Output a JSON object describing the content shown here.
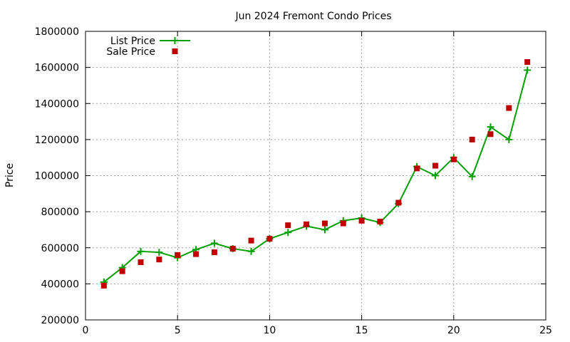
{
  "chart_data": {
    "type": "line",
    "title": "Jun 2024 Fremont Condo Prices",
    "xlabel": "",
    "ylabel": "Price",
    "xlim": [
      0,
      25
    ],
    "ylim": [
      200000,
      1800000
    ],
    "x_ticks": [
      0,
      5,
      10,
      15,
      20,
      25
    ],
    "y_ticks": [
      200000,
      400000,
      600000,
      800000,
      1000000,
      1200000,
      1400000,
      1600000,
      1800000
    ],
    "grid": true,
    "legend_position": "top-left",
    "series": [
      {
        "name": "List Price",
        "style": "linespoints",
        "marker": "plus",
        "color": "#00a000",
        "x": [
          1,
          2,
          3,
          4,
          5,
          6,
          7,
          8,
          9,
          10,
          11,
          12,
          13,
          14,
          15,
          16,
          17,
          18,
          19,
          20,
          21,
          22,
          23,
          24
        ],
        "y": [
          410000,
          490000,
          580000,
          575000,
          545000,
          590000,
          625000,
          595000,
          580000,
          650000,
          685000,
          720000,
          700000,
          750000,
          765000,
          740000,
          845000,
          1050000,
          1000000,
          1100000,
          995000,
          1270000,
          1200000,
          1585000
        ]
      },
      {
        "name": "Sale Price",
        "style": "points",
        "marker": "square",
        "color": "#c00000",
        "x": [
          1,
          2,
          3,
          4,
          5,
          6,
          7,
          8,
          9,
          10,
          11,
          12,
          13,
          14,
          15,
          16,
          17,
          18,
          19,
          20,
          21,
          22,
          23,
          24
        ],
        "y": [
          390000,
          470000,
          520000,
          535000,
          560000,
          565000,
          575000,
          595000,
          640000,
          650000,
          725000,
          730000,
          735000,
          735000,
          750000,
          745000,
          850000,
          1040000,
          1055000,
          1090000,
          1200000,
          1230000,
          1375000,
          1630000
        ]
      }
    ]
  }
}
